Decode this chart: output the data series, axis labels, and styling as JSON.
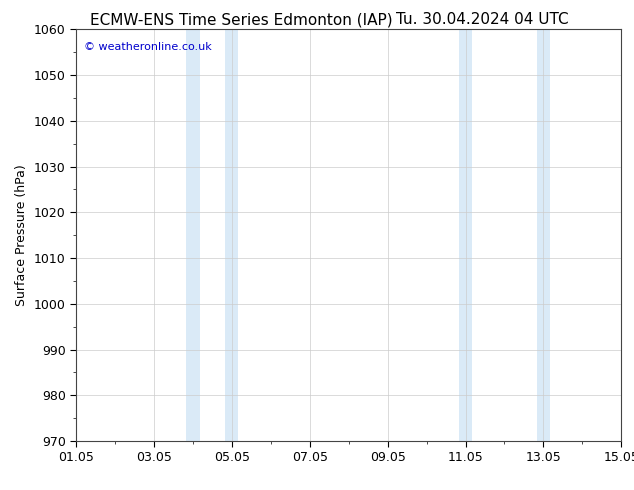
{
  "title_left": "ECMW-ENS Time Series Edmonton (IAP)",
  "title_right": "Tu. 30.04.2024 04 UTC",
  "ylabel": "Surface Pressure (hPa)",
  "ylim": [
    970,
    1060
  ],
  "yticks": [
    970,
    980,
    990,
    1000,
    1010,
    1020,
    1030,
    1040,
    1050,
    1060
  ],
  "xtick_labels": [
    "01.05",
    "03.05",
    "05.05",
    "07.05",
    "09.05",
    "11.05",
    "13.05",
    "15.05"
  ],
  "xtick_days": [
    1,
    3,
    5,
    7,
    9,
    11,
    13,
    15
  ],
  "xlim": [
    1,
    15
  ],
  "shaded_regions": [
    {
      "start_day": 3.83,
      "end_day": 4.17,
      "color": "#daeaf7"
    },
    {
      "start_day": 4.83,
      "end_day": 5.17,
      "color": "#daeaf7"
    },
    {
      "start_day": 10.83,
      "end_day": 11.17,
      "color": "#daeaf7"
    },
    {
      "start_day": 12.83,
      "end_day": 13.17,
      "color": "#daeaf7"
    }
  ],
  "watermark_text": "© weatheronline.co.uk",
  "watermark_color": "#0000cc",
  "background_color": "#ffffff",
  "plot_bg_color": "#ffffff",
  "grid_color": "#cccccc",
  "title_fontsize": 11,
  "axis_label_fontsize": 9,
  "tick_fontsize": 9
}
